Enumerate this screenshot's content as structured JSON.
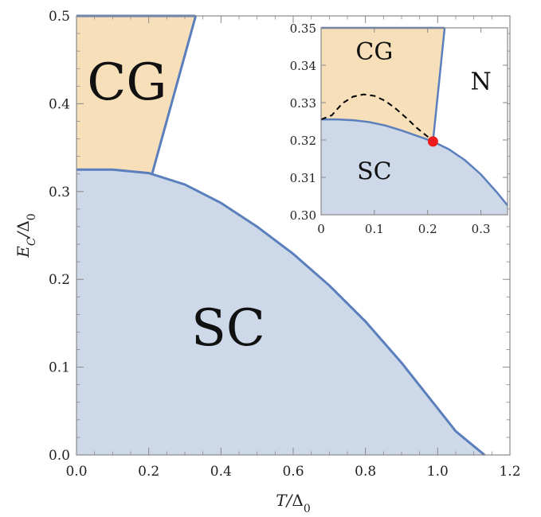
{
  "colors": {
    "sc_fill": "#cdd8e8",
    "cg_fill": "#f6dfb9",
    "boundary": "#5b7fbd",
    "frame": "#888888",
    "dashed": "#000000",
    "marker": "#ee1c1c"
  },
  "chart_data": [
    {
      "type": "area",
      "xlabel": "T/Δ0",
      "ylabel": "EC/Δ0",
      "xlim": [
        0,
        1.2
      ],
      "ylim": [
        0,
        0.5
      ],
      "xticks": [
        "0.0",
        "0.2",
        "0.4",
        "0.6",
        "0.8",
        "1.0",
        "1.2"
      ],
      "yticks": [
        "0.0",
        "0.1",
        "0.2",
        "0.3",
        "0.4",
        "0.5"
      ],
      "regions": [
        {
          "label": "SC",
          "anchor": [
            0.42,
            0.125
          ]
        },
        {
          "label": "CG",
          "anchor": [
            0.14,
            0.405
          ]
        }
      ],
      "series": [
        {
          "role": "sc_boundary",
          "x": [
            0,
            0.1,
            0.2,
            0.3,
            0.4,
            0.5,
            0.6,
            0.7,
            0.8,
            0.9,
            1.0,
            1.05,
            1.1,
            1.13
          ],
          "y": [
            0.325,
            0.325,
            0.321,
            0.308,
            0.287,
            0.26,
            0.229,
            0.193,
            0.152,
            0.105,
            0.053,
            0.027,
            0.01,
            0.0
          ]
        },
        {
          "role": "cg_boundary",
          "x": [
            0.21,
            0.33
          ],
          "y": [
            0.321,
            0.5
          ]
        }
      ]
    },
    {
      "type": "area",
      "inset": true,
      "xlim": [
        0,
        0.35
      ],
      "ylim": [
        0.3,
        0.35
      ],
      "xticks": [
        "0",
        "0.1",
        "0.2",
        "0.3"
      ],
      "yticks": [
        "0.30",
        "0.31",
        "0.32",
        "0.33",
        "0.34",
        "0.35"
      ],
      "regions": [
        {
          "label": "CG",
          "anchor": [
            0.1,
            0.3415
          ]
        },
        {
          "label": "SC",
          "anchor": [
            0.1,
            0.3095
          ]
        },
        {
          "label": "N",
          "anchor": [
            0.3,
            0.3335
          ]
        }
      ],
      "series": [
        {
          "role": "sc_boundary",
          "x": [
            0,
            0.03,
            0.06,
            0.09,
            0.12,
            0.15,
            0.18,
            0.21,
            0.24,
            0.27,
            0.3,
            0.33,
            0.35
          ],
          "y": [
            0.3255,
            0.3255,
            0.3253,
            0.3248,
            0.3239,
            0.3226,
            0.3211,
            0.3196,
            0.3175,
            0.3146,
            0.3108,
            0.306,
            0.3025
          ]
        },
        {
          "role": "cg_boundary",
          "x": [
            0.21,
            0.232
          ],
          "y": [
            0.3196,
            0.35
          ]
        },
        {
          "role": "dashed",
          "x": [
            0,
            0.02,
            0.04,
            0.06,
            0.08,
            0.1,
            0.12,
            0.14,
            0.16,
            0.18,
            0.2,
            0.21
          ],
          "y": [
            0.3255,
            0.3266,
            0.3298,
            0.3316,
            0.3322,
            0.3318,
            0.3305,
            0.3284,
            0.3259,
            0.3232,
            0.3209,
            0.3196
          ]
        },
        {
          "role": "critical_point",
          "x": [
            0.21
          ],
          "y": [
            0.3196
          ]
        }
      ]
    }
  ]
}
